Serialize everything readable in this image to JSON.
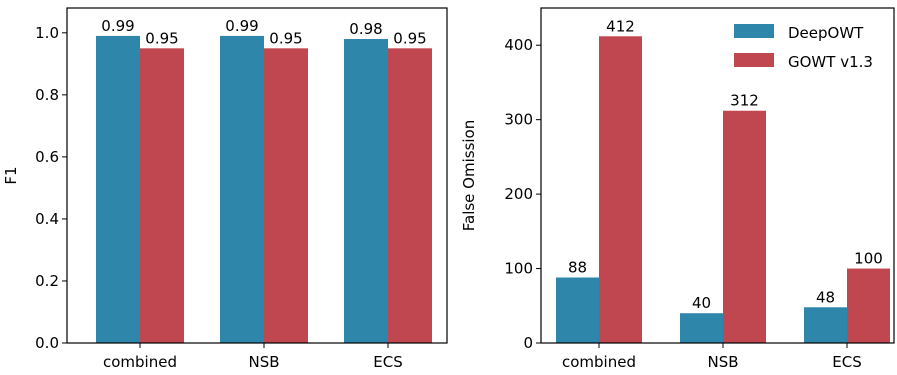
{
  "chart_data": [
    {
      "type": "bar",
      "categories": [
        "combined",
        "NSB",
        "ECS"
      ],
      "series": [
        {
          "name": "DeepOWT",
          "values": [
            0.99,
            0.99,
            0.98
          ],
          "labels": [
            "0.99",
            "0.99",
            "0.98"
          ],
          "color": "#2e86ab"
        },
        {
          "name": "GOWT v1.3",
          "values": [
            0.95,
            0.95,
            0.95
          ],
          "labels": [
            "0.95",
            "0.95",
            "0.95"
          ],
          "color": "#c0474f"
        }
      ],
      "title": "",
      "xlabel": "",
      "ylabel": "F1",
      "ylim": [
        0,
        1.08
      ],
      "yticks": [
        0.0,
        0.2,
        0.4,
        0.6,
        0.8,
        1.0
      ],
      "ytick_labels": [
        "0.0",
        "0.2",
        "0.4",
        "0.6",
        "0.8",
        "1.0"
      ],
      "grid": false,
      "legend": "none"
    },
    {
      "type": "bar",
      "categories": [
        "combined",
        "NSB",
        "ECS"
      ],
      "series": [
        {
          "name": "DeepOWT",
          "values": [
            88,
            40,
            48
          ],
          "labels": [
            "88",
            "40",
            "48"
          ],
          "color": "#2e86ab"
        },
        {
          "name": "GOWT v1.3",
          "values": [
            412,
            312,
            100
          ],
          "labels": [
            "412",
            "312",
            "100"
          ],
          "color": "#c0474f"
        }
      ],
      "title": "",
      "xlabel": "",
      "ylabel": "False Omission",
      "ylim": [
        0,
        450
      ],
      "yticks": [
        0,
        100,
        200,
        300,
        400
      ],
      "ytick_labels": [
        "0",
        "100",
        "200",
        "300",
        "400"
      ],
      "grid": false,
      "legend": "top-right"
    }
  ]
}
